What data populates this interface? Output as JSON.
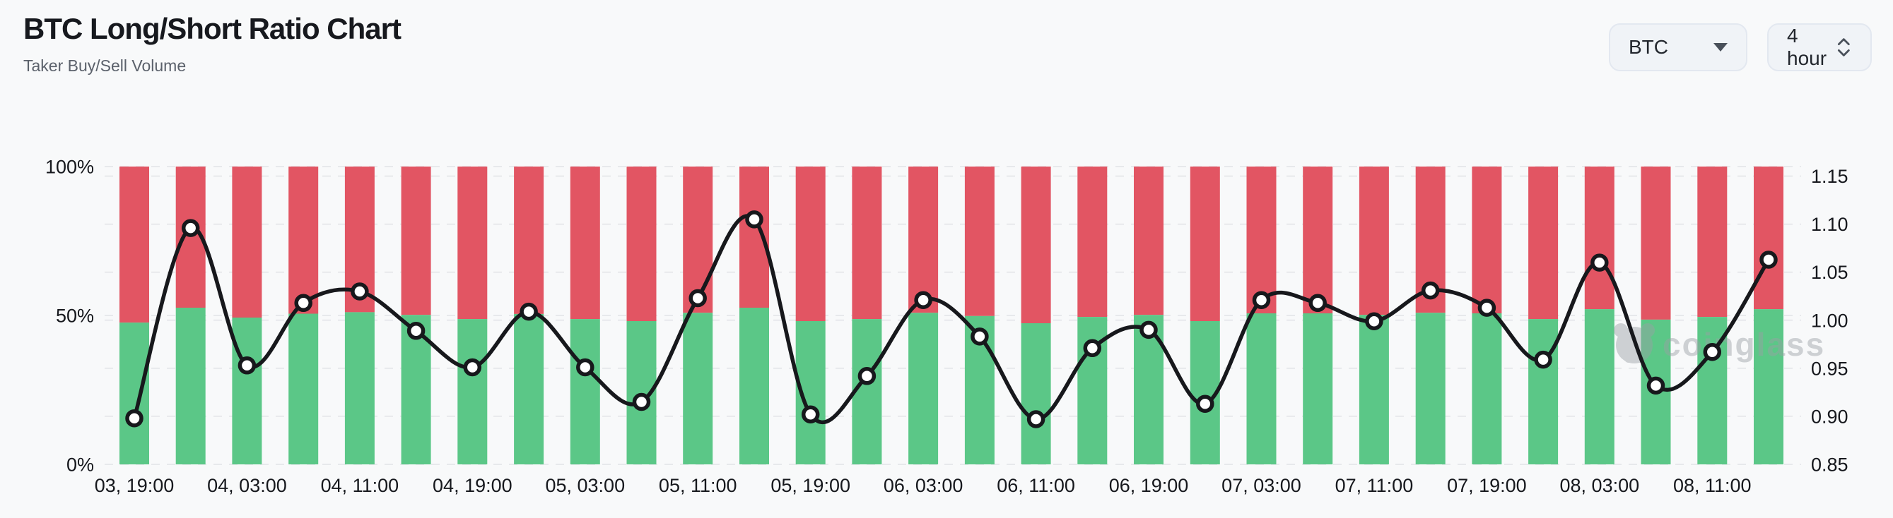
{
  "header": {
    "title": "BTC Long/Short Ratio Chart",
    "subtitle": "Taker Buy/Sell Volume",
    "symbol_select": {
      "value": "BTC"
    },
    "interval_select": {
      "value": "4 hour"
    }
  },
  "watermark": {
    "text": "coinglass"
  },
  "chart_data": {
    "type": "bar+line",
    "title": "BTC Long/Short Ratio Chart",
    "subtitle": "Taker Buy/Sell Volume",
    "stacked_bars": true,
    "grid": "dashed-horizontal",
    "x": [
      "03, 19:00",
      "03, 23:00",
      "04, 03:00",
      "04, 07:00",
      "04, 11:00",
      "04, 15:00",
      "04, 19:00",
      "04, 23:00",
      "05, 03:00",
      "05, 07:00",
      "05, 11:00",
      "05, 15:00",
      "05, 19:00",
      "05, 23:00",
      "06, 03:00",
      "06, 07:00",
      "06, 11:00",
      "06, 15:00",
      "06, 19:00",
      "06, 23:00",
      "07, 03:00",
      "07, 07:00",
      "07, 11:00",
      "07, 15:00",
      "07, 19:00",
      "07, 23:00",
      "08, 03:00",
      "08, 07:00",
      "08, 11:00",
      "08, 15:00"
    ],
    "x_axis_labels": [
      "03, 19:00",
      "04, 03:00",
      "04, 11:00",
      "04, 19:00",
      "05, 03:00",
      "05, 11:00",
      "05, 19:00",
      "06, 03:00",
      "06, 11:00",
      "06, 19:00",
      "07, 03:00",
      "07, 11:00",
      "07, 19:00",
      "08, 03:00",
      "08, 11:00"
    ],
    "x_label_every": 2,
    "series": [
      {
        "name": "Taker Buy %",
        "type": "bar",
        "color": "#5bc787",
        "axis": "left",
        "values": [
          47.6,
          52.6,
          49.3,
          50.6,
          51.1,
          50.2,
          48.8,
          50.5,
          48.8,
          48.1,
          50.9,
          52.6,
          48.1,
          48.8,
          50.9,
          49.8,
          47.4,
          49.5,
          50.2,
          48.1,
          50.7,
          50.7,
          50.2,
          50.9,
          50.7,
          48.8,
          52.1,
          48.6,
          49.5,
          52.1
        ]
      },
      {
        "name": "Taker Sell %",
        "type": "bar",
        "color": "#e25563",
        "axis": "left",
        "values": [
          52.4,
          47.4,
          50.7,
          49.4,
          48.9,
          49.8,
          51.2,
          49.5,
          51.2,
          51.9,
          49.1,
          47.4,
          51.9,
          51.2,
          49.1,
          50.2,
          52.6,
          50.5,
          49.8,
          51.9,
          49.3,
          49.3,
          49.8,
          49.1,
          49.3,
          51.2,
          47.9,
          51.4,
          50.5,
          47.9
        ]
      },
      {
        "name": "Long/Short Ratio",
        "type": "line",
        "color": "#17181c",
        "axis": "right",
        "values": [
          0.898,
          1.096,
          0.953,
          1.018,
          1.03,
          0.989,
          0.951,
          1.009,
          0.951,
          0.915,
          1.023,
          1.105,
          0.902,
          0.942,
          1.021,
          0.983,
          0.897,
          0.971,
          0.99,
          0.913,
          1.021,
          1.018,
          0.999,
          1.031,
          1.013,
          0.959,
          1.06,
          0.932,
          0.967,
          1.063
        ]
      }
    ],
    "left_axis": {
      "ticks": [
        "100%",
        "50%",
        "0%"
      ],
      "tick_values": [
        100,
        50,
        0
      ],
      "min": 0,
      "max": 100
    },
    "right_axis": {
      "ticks": [
        "1.15",
        "1.10",
        "1.05",
        "1.00",
        "0.95",
        "0.90",
        "0.85"
      ],
      "tick_values": [
        1.15,
        1.1,
        1.05,
        1.0,
        0.95,
        0.9,
        0.85
      ],
      "min": 0.85,
      "max": 1.16
    },
    "colors": {
      "buy": "#5bc787",
      "sell": "#e25563",
      "line": "#17181c",
      "marker_fill": "#ffffff",
      "grid": "#e7e9ec",
      "axis_text": "#16181d",
      "background": "#f8f9fa",
      "watermark": "#9aa0a5"
    }
  }
}
